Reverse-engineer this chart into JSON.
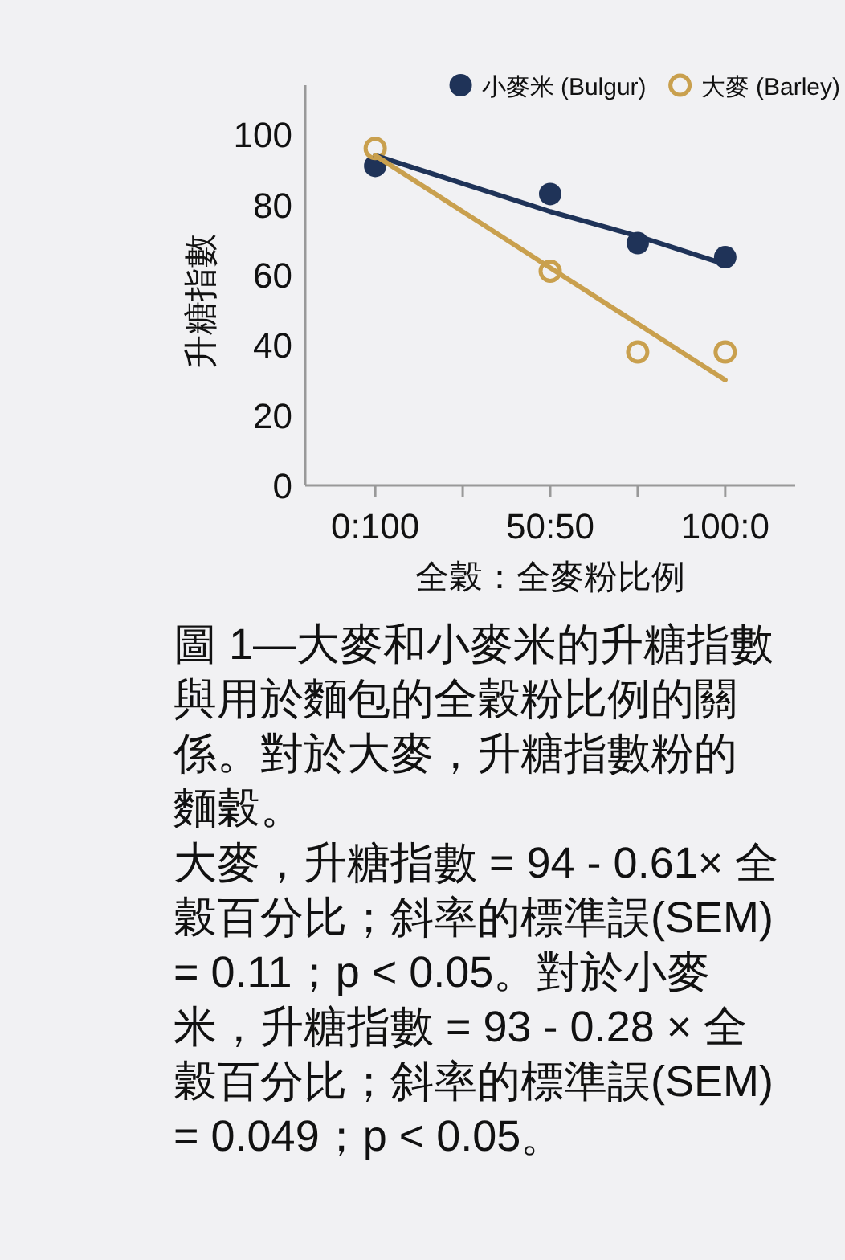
{
  "chart_data": {
    "type": "scatter",
    "xlabel": "全穀：全麥粉比例",
    "ylabel": "升糖指數",
    "annotations": [
      "圖 1—大麥和小麥米的升糖指數與用於麵包的全穀粉比例的關係。對於大麥，升糖指數粉的麵穀。",
      "大麥，升糖指數 = 94 - 0.61× 全穀百分比；斜率的標準誤(SEM) = 0.11；p < 0.05。對於小麥米，升糖指數 = 93 - 0.28 × 全穀百分比；斜率的標準誤(SEM) = 0.049；p < 0.05。"
    ],
    "categories": [
      "0:100",
      null,
      "50:50",
      null,
      "100:0"
    ],
    "ylim": [
      0,
      114
    ],
    "yticks": [
      0,
      20,
      40,
      60,
      80,
      100
    ],
    "grid": false,
    "legend": "top right",
    "series": [
      {
        "name": "小麥米 (Bulgur)",
        "color": "#1f3358",
        "marker": "circle",
        "values": [
          91,
          null,
          83,
          69,
          65
        ]
      },
      {
        "name": "大麥 (Barley)",
        "color": "#c9a04e",
        "marker": "circle",
        "values": [
          96,
          null,
          61,
          38,
          38
        ]
      },
      {
        "type": "line",
        "color": "#1f3358",
        "values": [
          94,
          86,
          78,
          71,
          63
        ]
      },
      {
        "type": "line",
        "color": "#c9a04e",
        "values": [
          94,
          78,
          62,
          46,
          30
        ]
      }
    ]
  }
}
